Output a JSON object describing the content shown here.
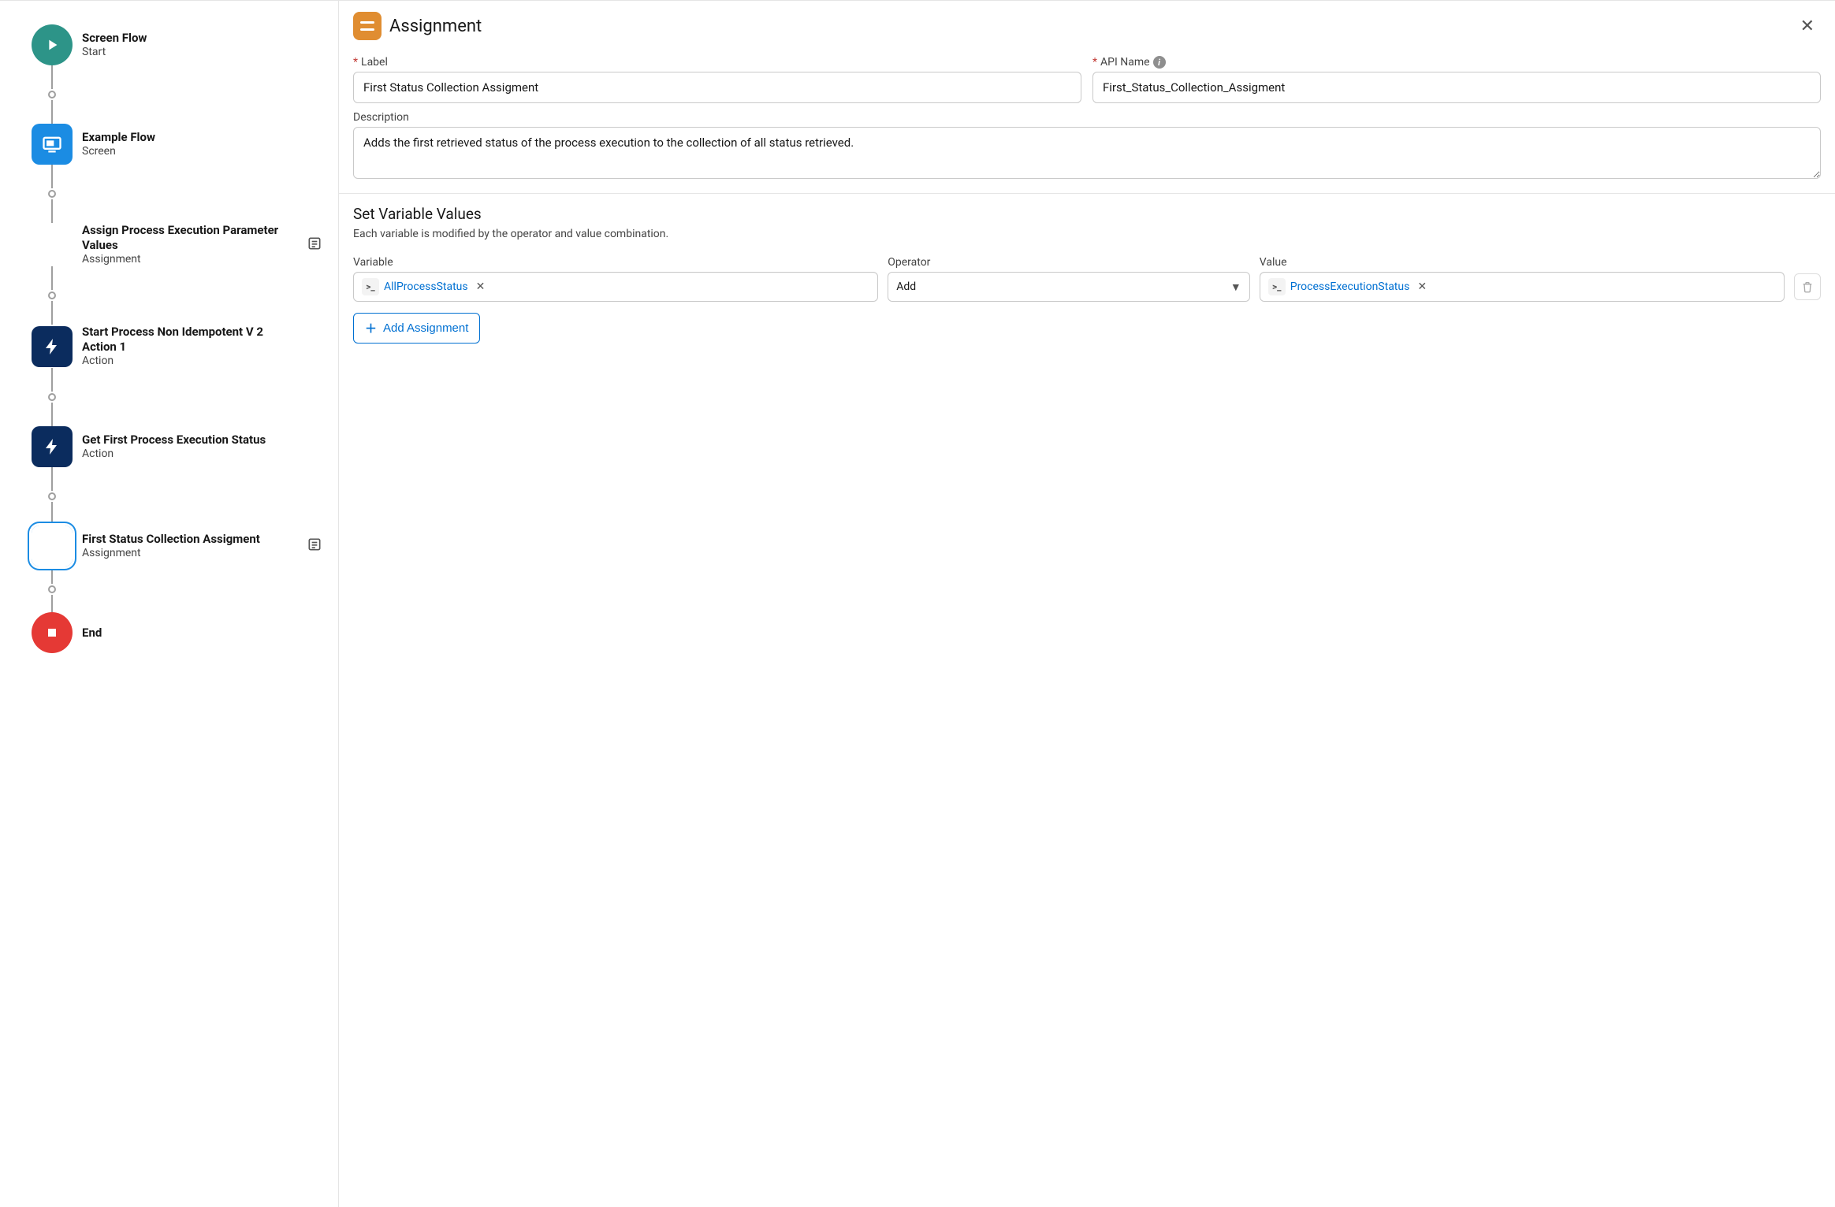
{
  "colors": {
    "start": "#2d9488",
    "screen": "#1b8ce3",
    "assignment": "#e08d31",
    "action": "#0b2c5e",
    "end": "#e53935",
    "link": "#0070d2",
    "required": "#c23934",
    "border": "#c9c9c9"
  },
  "flow": {
    "nodes": [
      {
        "id": "start",
        "shape": "circle",
        "color": "start",
        "icon": "play",
        "title": "Screen Flow",
        "subtitle": "Start",
        "selected": false,
        "badge": false
      },
      {
        "id": "screen",
        "shape": "rect",
        "color": "screen",
        "icon": "screen",
        "title": "Example Flow",
        "subtitle": "Screen",
        "selected": false,
        "badge": false
      },
      {
        "id": "assign1",
        "shape": "rect",
        "color": "assignment",
        "icon": "equals",
        "title": "Assign Process Execution Parameter Values",
        "subtitle": "Assignment",
        "selected": false,
        "badge": true
      },
      {
        "id": "action1",
        "shape": "rect",
        "color": "action",
        "icon": "bolt",
        "title": "Start Process Non Idempotent V 2 Action 1",
        "subtitle": "Action",
        "selected": false,
        "badge": false
      },
      {
        "id": "action2",
        "shape": "rect",
        "color": "action",
        "icon": "bolt",
        "title": "Get First Process Execution Status",
        "subtitle": "Action",
        "selected": false,
        "badge": false
      },
      {
        "id": "assign2",
        "shape": "rect",
        "color": "assignment",
        "icon": "equals",
        "title": "First Status Collection Assigment",
        "subtitle": "Assignment",
        "selected": true,
        "badge": true
      },
      {
        "id": "end",
        "shape": "circle",
        "color": "end",
        "icon": "stop",
        "title": "End",
        "subtitle": "",
        "selected": false,
        "badge": false
      }
    ]
  },
  "panel": {
    "element_type": "Assignment",
    "labels": {
      "label": "Label",
      "api_name": "API Name",
      "description": "Description"
    },
    "label_value": "First Status Collection Assigment",
    "api_name_value": "First_Status_Collection_Assigment",
    "description_value": "Adds the first retrieved status of the process execution to the collection of all status retrieved.",
    "section_title": "Set Variable Values",
    "section_sub": "Each variable is modified by the operator and value combination.",
    "columns": {
      "variable": "Variable",
      "operator": "Operator",
      "value": "Value"
    },
    "row": {
      "variable": "AllProcessStatus",
      "operator": "Add",
      "value": "ProcessExecutionStatus"
    },
    "add_button": "Add Assignment"
  }
}
